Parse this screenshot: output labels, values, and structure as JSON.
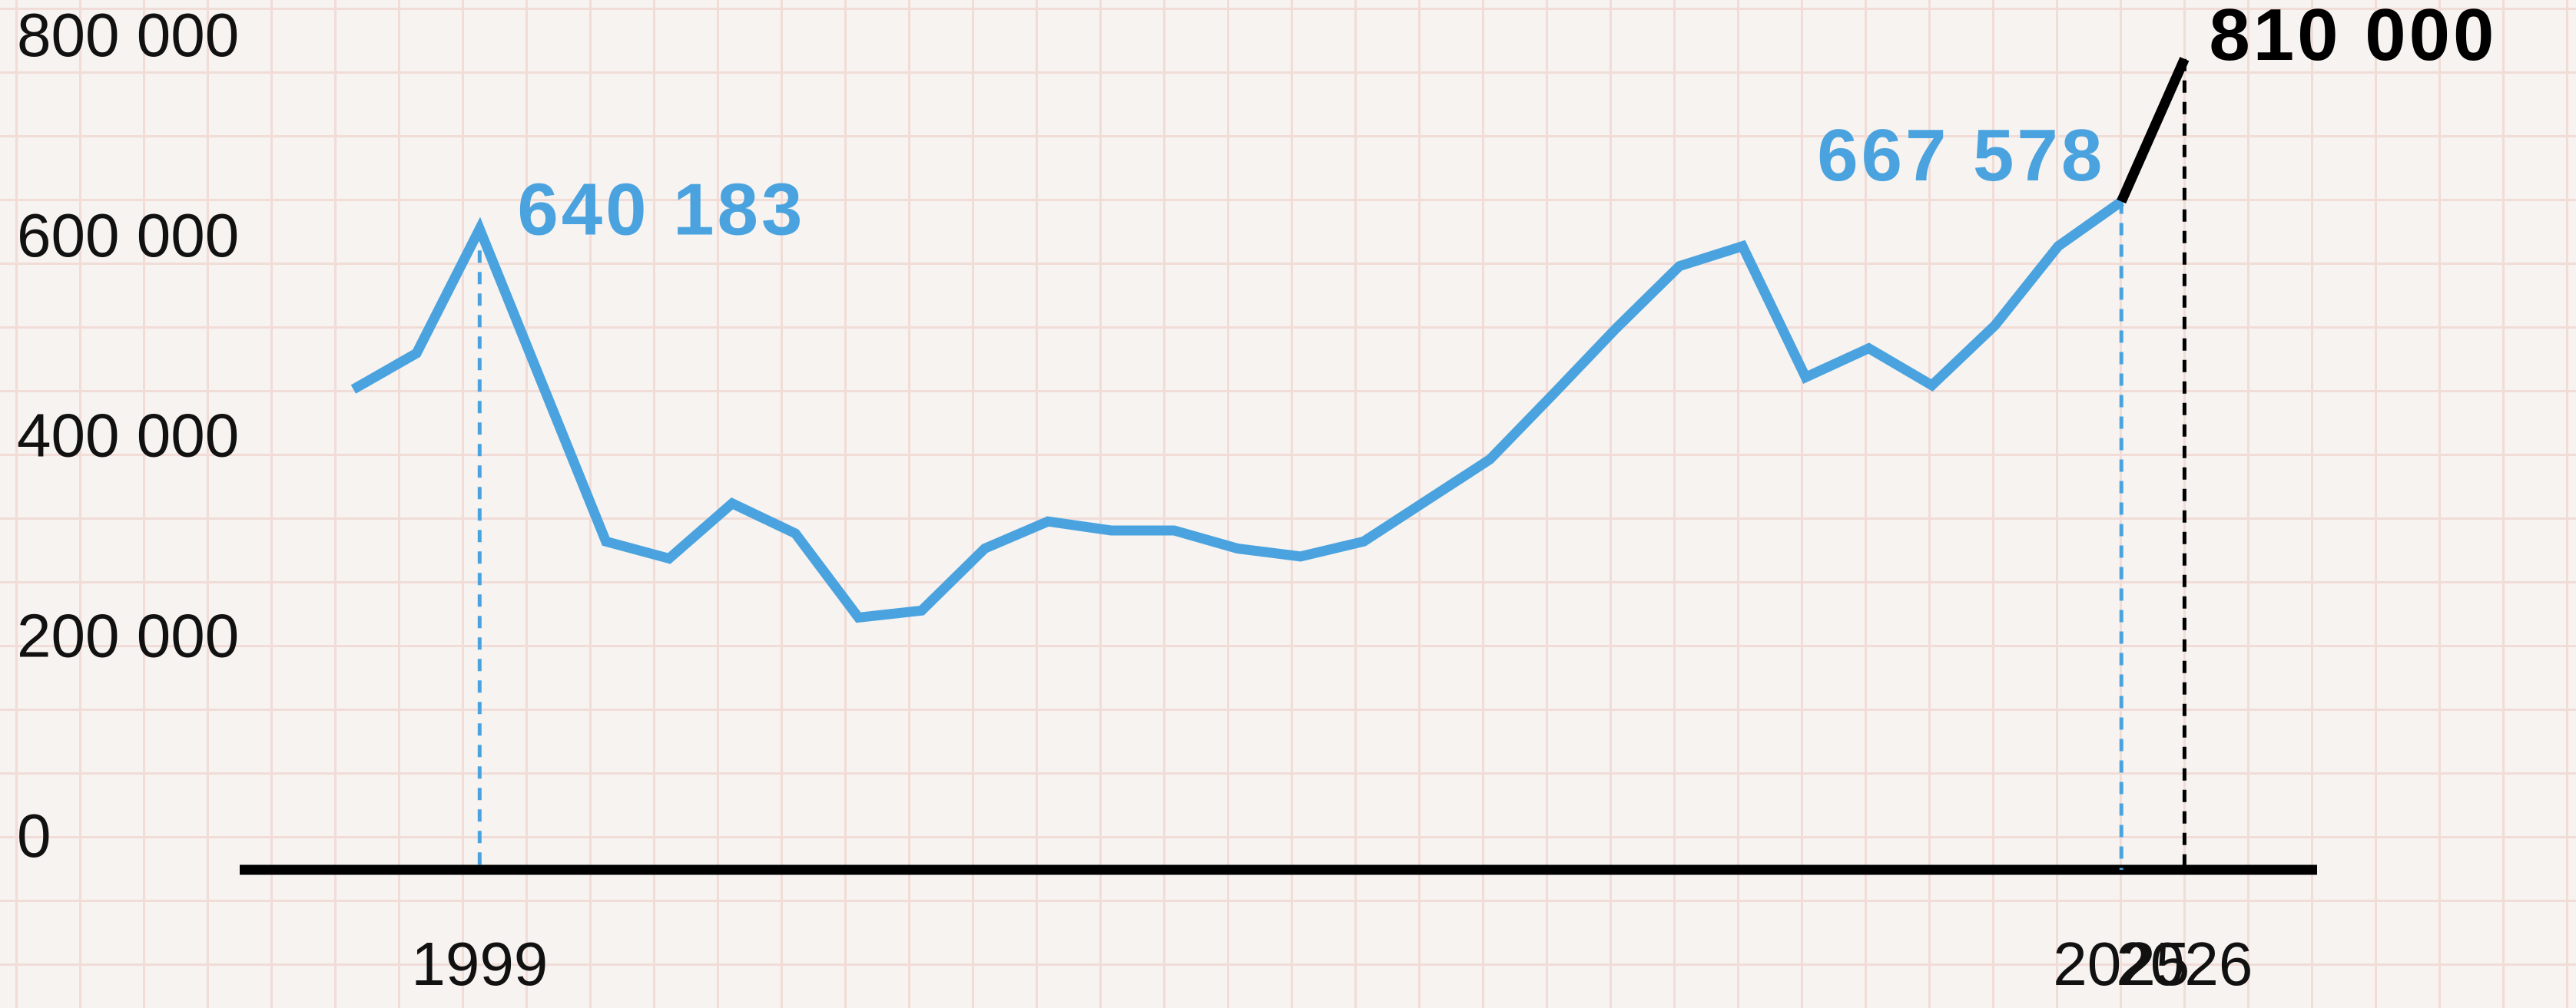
{
  "chart_data": {
    "type": "line",
    "x": [
      1997,
      1998,
      1999,
      2000,
      2001,
      2002,
      2003,
      2004,
      2005,
      2006,
      2007,
      2008,
      2009,
      2010,
      2011,
      2012,
      2013,
      2014,
      2015,
      2016,
      2017,
      2018,
      2019,
      2020,
      2021,
      2022,
      2023,
      2024,
      2025,
      2026
    ],
    "series": [
      {
        "color": "#4aa3df",
        "values": [
          480000,
          516000,
          640183,
          484000,
          328000,
          311000,
          366000,
          336000,
          252000,
          259000,
          321000,
          348000,
          339000,
          339000,
          321000,
          313000,
          328000,
          369000,
          410000,
          475000,
          541000,
          603000,
          623000,
          492000,
          521000,
          484000,
          544000,
          623000,
          667578,
          null
        ],
        "value_labels": [
          null,
          null,
          "640 183",
          null,
          null,
          null,
          null,
          null,
          null,
          null,
          null,
          null,
          null,
          null,
          null,
          null,
          null,
          null,
          null,
          null,
          null,
          null,
          null,
          null,
          null,
          null,
          null,
          null,
          "667 578",
          null
        ]
      },
      {
        "color": "#000000",
        "values": [
          null,
          null,
          null,
          null,
          null,
          null,
          null,
          null,
          null,
          null,
          null,
          null,
          null,
          null,
          null,
          null,
          null,
          null,
          null,
          null,
          null,
          null,
          null,
          null,
          null,
          null,
          null,
          null,
          667578,
          810000
        ],
        "value_labels": [
          null,
          null,
          null,
          null,
          null,
          null,
          null,
          null,
          null,
          null,
          null,
          null,
          null,
          null,
          null,
          null,
          null,
          null,
          null,
          null,
          null,
          null,
          null,
          null,
          null,
          null,
          null,
          null,
          null,
          "810 000"
        ]
      }
    ],
    "xlim": [
      1995.2,
      2028.1
    ],
    "xticks": [
      1999,
      2025,
      2026
    ],
    "ylim": [
      0,
      868900
    ],
    "yticks": [
      0,
      {
        "value": 200000,
        "label": "200 000"
      },
      {
        "value": 400000,
        "label": "400 000"
      },
      {
        "value": 600000,
        "label": "600 000"
      },
      {
        "value": 800000,
        "label": "800 000"
      }
    ]
  }
}
